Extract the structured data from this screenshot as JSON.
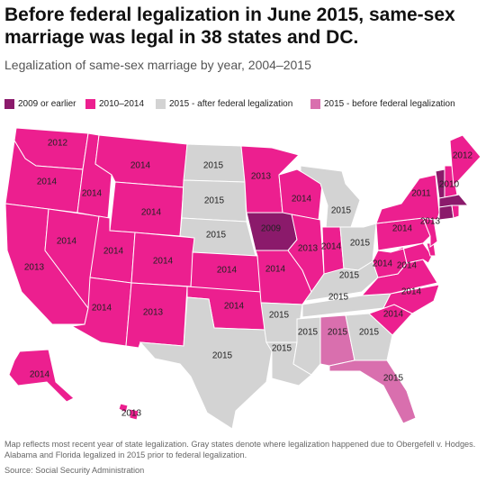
{
  "title": "Before federal legalization in June 2015, same-sex marriage was legal in 38 states and DC.",
  "subtitle": "Legalization of same-sex marriage by year, 2004–2015",
  "colors": {
    "c2009": "#8b1a6b",
    "c2014": "#ec1f8f",
    "cafter": "#d3d3d3",
    "cbefore": "#d96fae"
  },
  "legend": [
    {
      "label": "2009 or earlier",
      "color": "#8b1a6b"
    },
    {
      "label": "2010–2014",
      "color": "#ec1f8f"
    },
    {
      "label": "2015 - after federal legalization",
      "color": "#d3d3d3"
    },
    {
      "label": "2015 - before federal legalization",
      "color": "#d96fae"
    }
  ],
  "states": {
    "WA": {
      "year": "2012",
      "group": "c2014"
    },
    "OR": {
      "year": "2014",
      "group": "c2014"
    },
    "CA": {
      "year": "2013",
      "group": "c2014"
    },
    "NV": {
      "year": "2014",
      "group": "c2014"
    },
    "ID": {
      "year": "2014",
      "group": "c2014"
    },
    "MT": {
      "year": "2014",
      "group": "c2014"
    },
    "WY": {
      "year": "2014",
      "group": "c2014"
    },
    "UT": {
      "year": "2014",
      "group": "c2014"
    },
    "CO": {
      "year": "2014",
      "group": "c2014"
    },
    "AZ": {
      "year": "2014",
      "group": "c2014"
    },
    "NM": {
      "year": "2013",
      "group": "c2014"
    },
    "ND": {
      "year": "2015",
      "group": "cafter"
    },
    "SD": {
      "year": "2015",
      "group": "cafter"
    },
    "NE": {
      "year": "2015",
      "group": "cafter"
    },
    "KS": {
      "year": "2014",
      "group": "c2014"
    },
    "OK": {
      "year": "2014",
      "group": "c2014"
    },
    "TX": {
      "year": "2015",
      "group": "cafter"
    },
    "MN": {
      "year": "2013",
      "group": "c2014"
    },
    "IA": {
      "year": "2009",
      "group": "c2009"
    },
    "MO": {
      "year": "2014",
      "group": "c2014"
    },
    "AR": {
      "year": "2015",
      "group": "cafter"
    },
    "LA": {
      "year": "2015",
      "group": "cafter"
    },
    "WI": {
      "year": "2014",
      "group": "c2014"
    },
    "IL": {
      "year": "2013",
      "group": "c2014"
    },
    "MI": {
      "year": "2015",
      "group": "cafter"
    },
    "IN": {
      "year": "2014",
      "group": "c2014"
    },
    "OH": {
      "year": "2015",
      "group": "cafter"
    },
    "KY": {
      "year": "2015",
      "group": "cafter"
    },
    "TN": {
      "year": "2015",
      "group": "cafter"
    },
    "MS": {
      "year": "2015",
      "group": "cafter"
    },
    "AL": {
      "year": "2015",
      "group": "cbefore"
    },
    "GA": {
      "year": "2015",
      "group": "cafter"
    },
    "FL": {
      "year": "2015",
      "group": "cbefore"
    },
    "SC": {
      "year": "2014",
      "group": "c2014"
    },
    "NC": {
      "year": "2014",
      "group": "c2014"
    },
    "VA": {
      "year": "2014",
      "group": "c2014"
    },
    "WV": {
      "year": "2014",
      "group": "c2014"
    },
    "PA": {
      "year": "2014",
      "group": "c2014"
    },
    "NY": {
      "year": "2011",
      "group": "c2014"
    },
    "NJ": {
      "year": "2013",
      "group": "c2014"
    },
    "ME": {
      "year": "2012",
      "group": "c2014"
    },
    "NH": {
      "year": "2010",
      "group": "c2014"
    },
    "VT": {
      "year": "",
      "group": "c2009"
    },
    "MA": {
      "year": "",
      "group": "c2009"
    },
    "CT": {
      "year": "",
      "group": "c2009"
    },
    "RI": {
      "year": "",
      "group": "c2014"
    },
    "DE": {
      "year": "",
      "group": "c2014"
    },
    "MD": {
      "year": "",
      "group": "c2014"
    },
    "AK": {
      "year": "2014",
      "group": "c2014"
    },
    "HI": {
      "year": "2013",
      "group": "c2014"
    }
  },
  "note": "Map reflects most recent year of state legalization. Gray states denote where legalization happened due to Obergefell v. Hodges. Alabama and Florida legalized in 2015 prior to federal legalization.",
  "source": "Source: Social Security Administration"
}
